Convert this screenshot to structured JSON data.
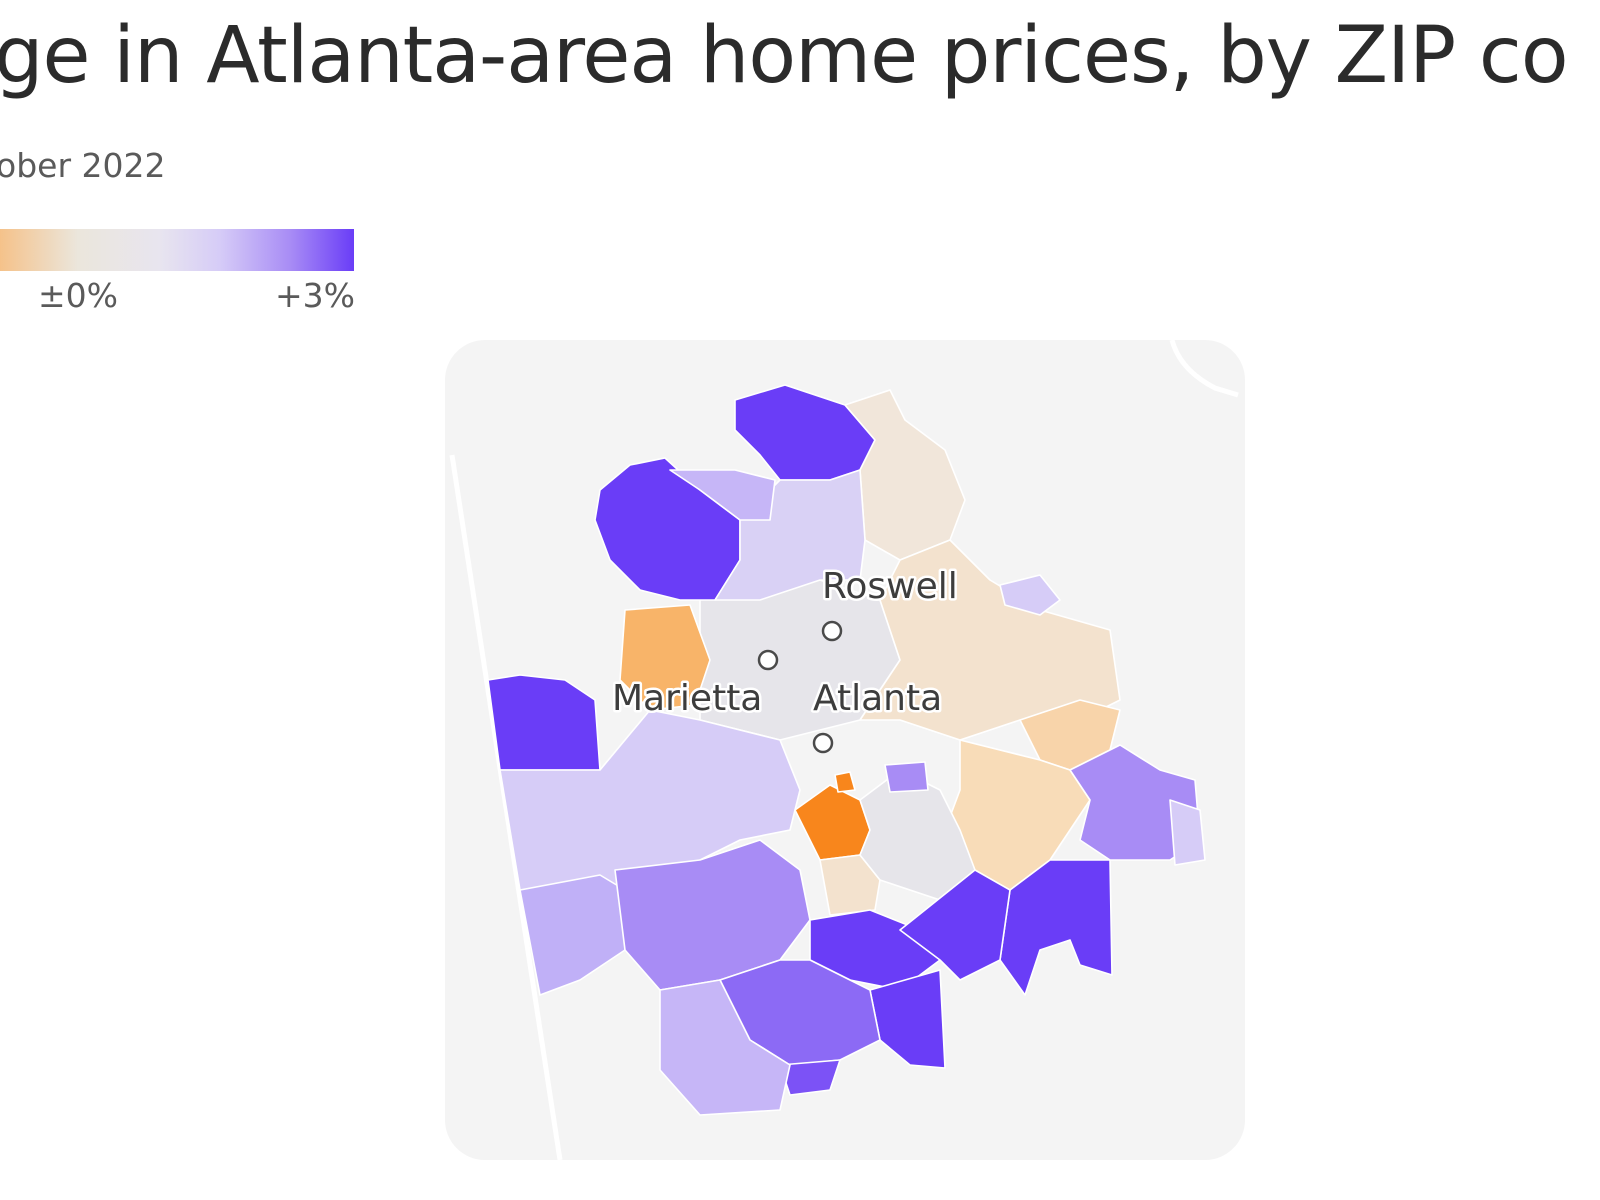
{
  "header": {
    "title": "ge in Atlanta-area home prices, by ZIP co",
    "subtitle": "ober 2022"
  },
  "legend": {
    "tick_zero": "±0%",
    "tick_plus3": "+3%"
  },
  "map": {
    "cities": [
      {
        "name": "Roswell",
        "label": "Roswell"
      },
      {
        "name": "Marietta",
        "label": "Marietta"
      },
      {
        "name": "Atlanta",
        "label": "Atlanta"
      }
    ]
  },
  "colors": {
    "strong_increase": "#6a3df7",
    "increase": "#a88cf5",
    "slight_increase": "#d6ccf7",
    "neutral": "#e8e7ea",
    "slight_decrease": "#f3e2ce",
    "decrease": "#f8c691",
    "strong_decrease": "#f8861c",
    "background_panel": "#f4f4f4"
  }
}
